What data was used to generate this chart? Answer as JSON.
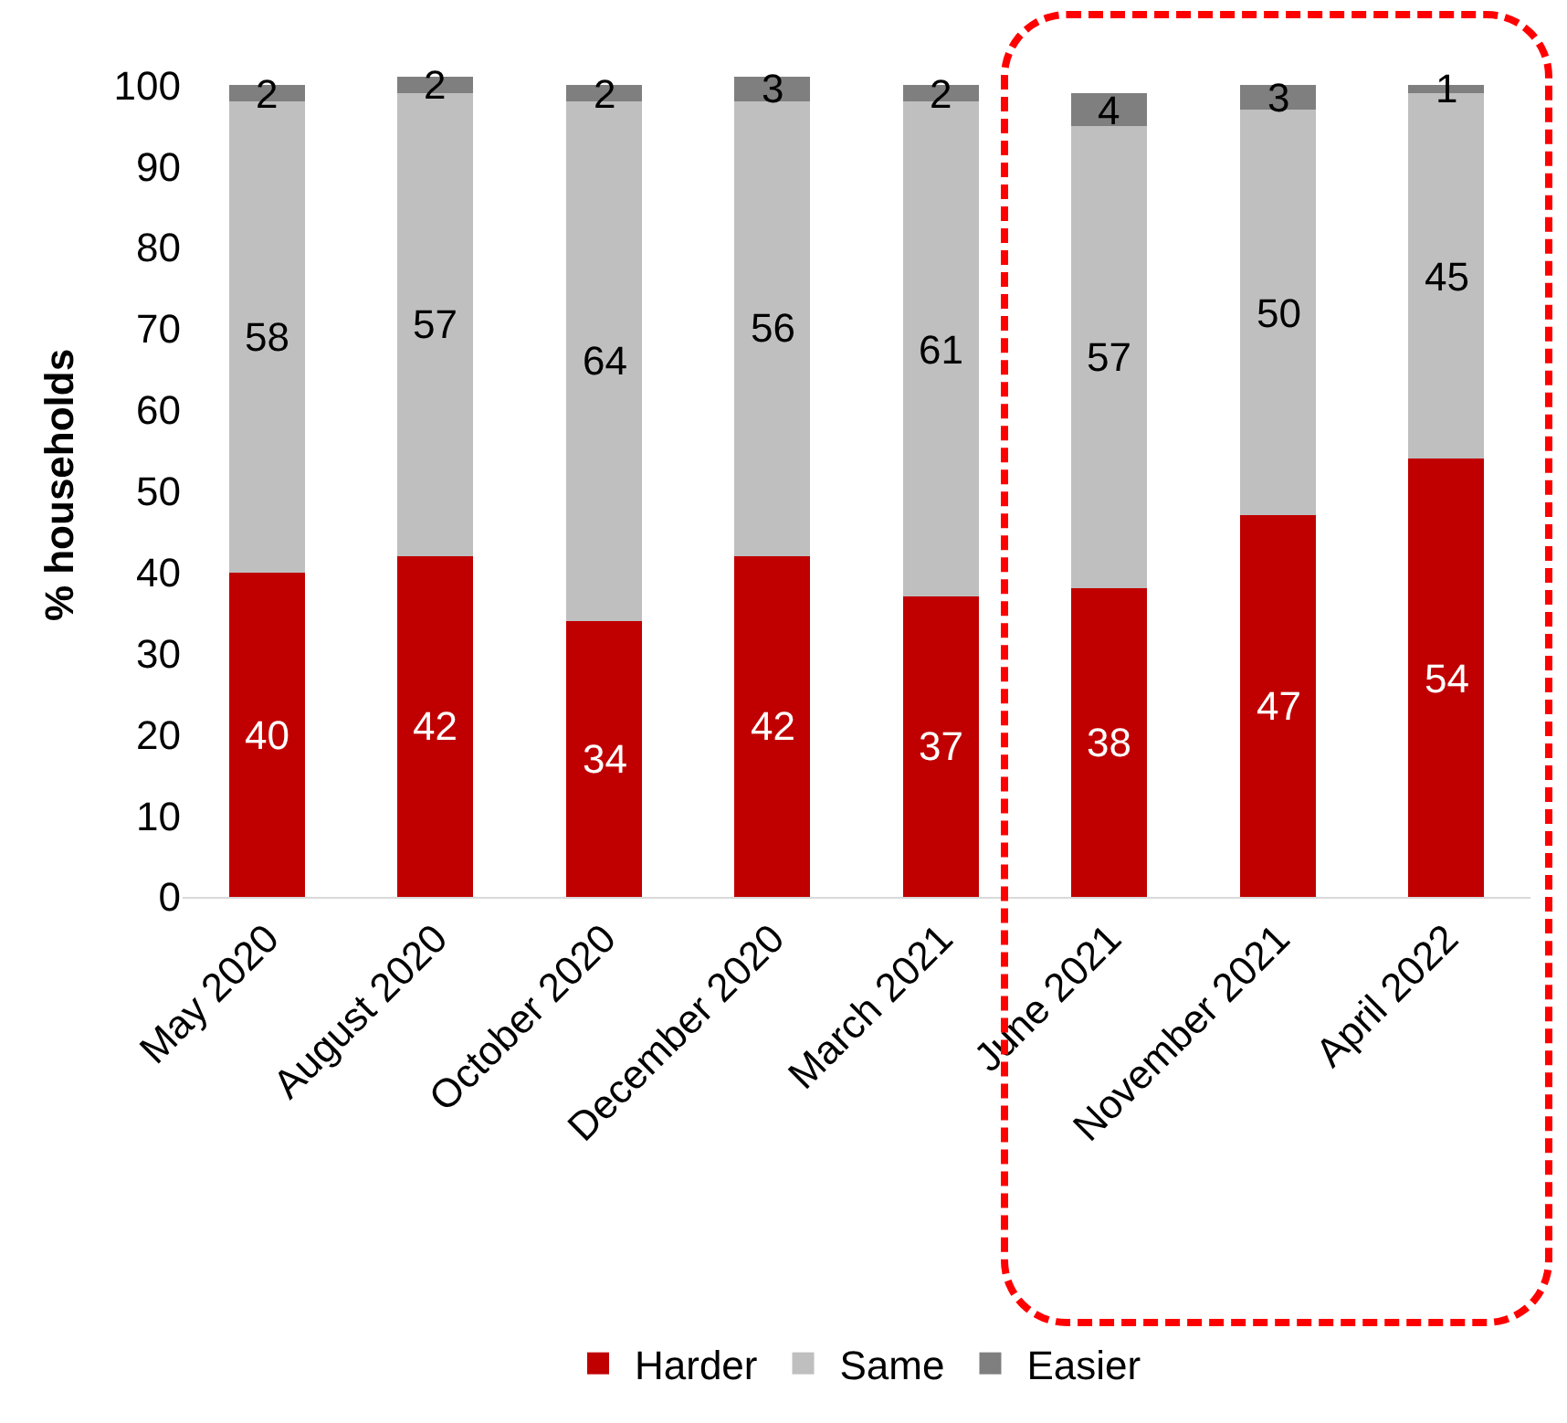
{
  "chart_data": {
    "type": "bar",
    "stacked": true,
    "ylabel": "% households",
    "categories": [
      "May 2020",
      "August 2020",
      "October 2020",
      "December 2020",
      "March 2021",
      "June 2021",
      "November 2021",
      "April 2022"
    ],
    "series": [
      {
        "name": "Harder",
        "color": "#c00000",
        "values": [
          40,
          42,
          34,
          42,
          37,
          38,
          47,
          54
        ]
      },
      {
        "name": "Same",
        "color": "#bfbfbf",
        "values": [
          58,
          57,
          64,
          56,
          61,
          57,
          50,
          45
        ]
      },
      {
        "name": "Easier",
        "color": "#7f7f7f",
        "values": [
          2,
          2,
          2,
          3,
          2,
          4,
          3,
          1
        ]
      }
    ],
    "ylim": [
      0,
      101.5
    ],
    "yticks": [
      0,
      10,
      20,
      30,
      40,
      50,
      60,
      70,
      80,
      90,
      100
    ],
    "data_labels": true,
    "grid": false,
    "legend": "bottom"
  }
}
